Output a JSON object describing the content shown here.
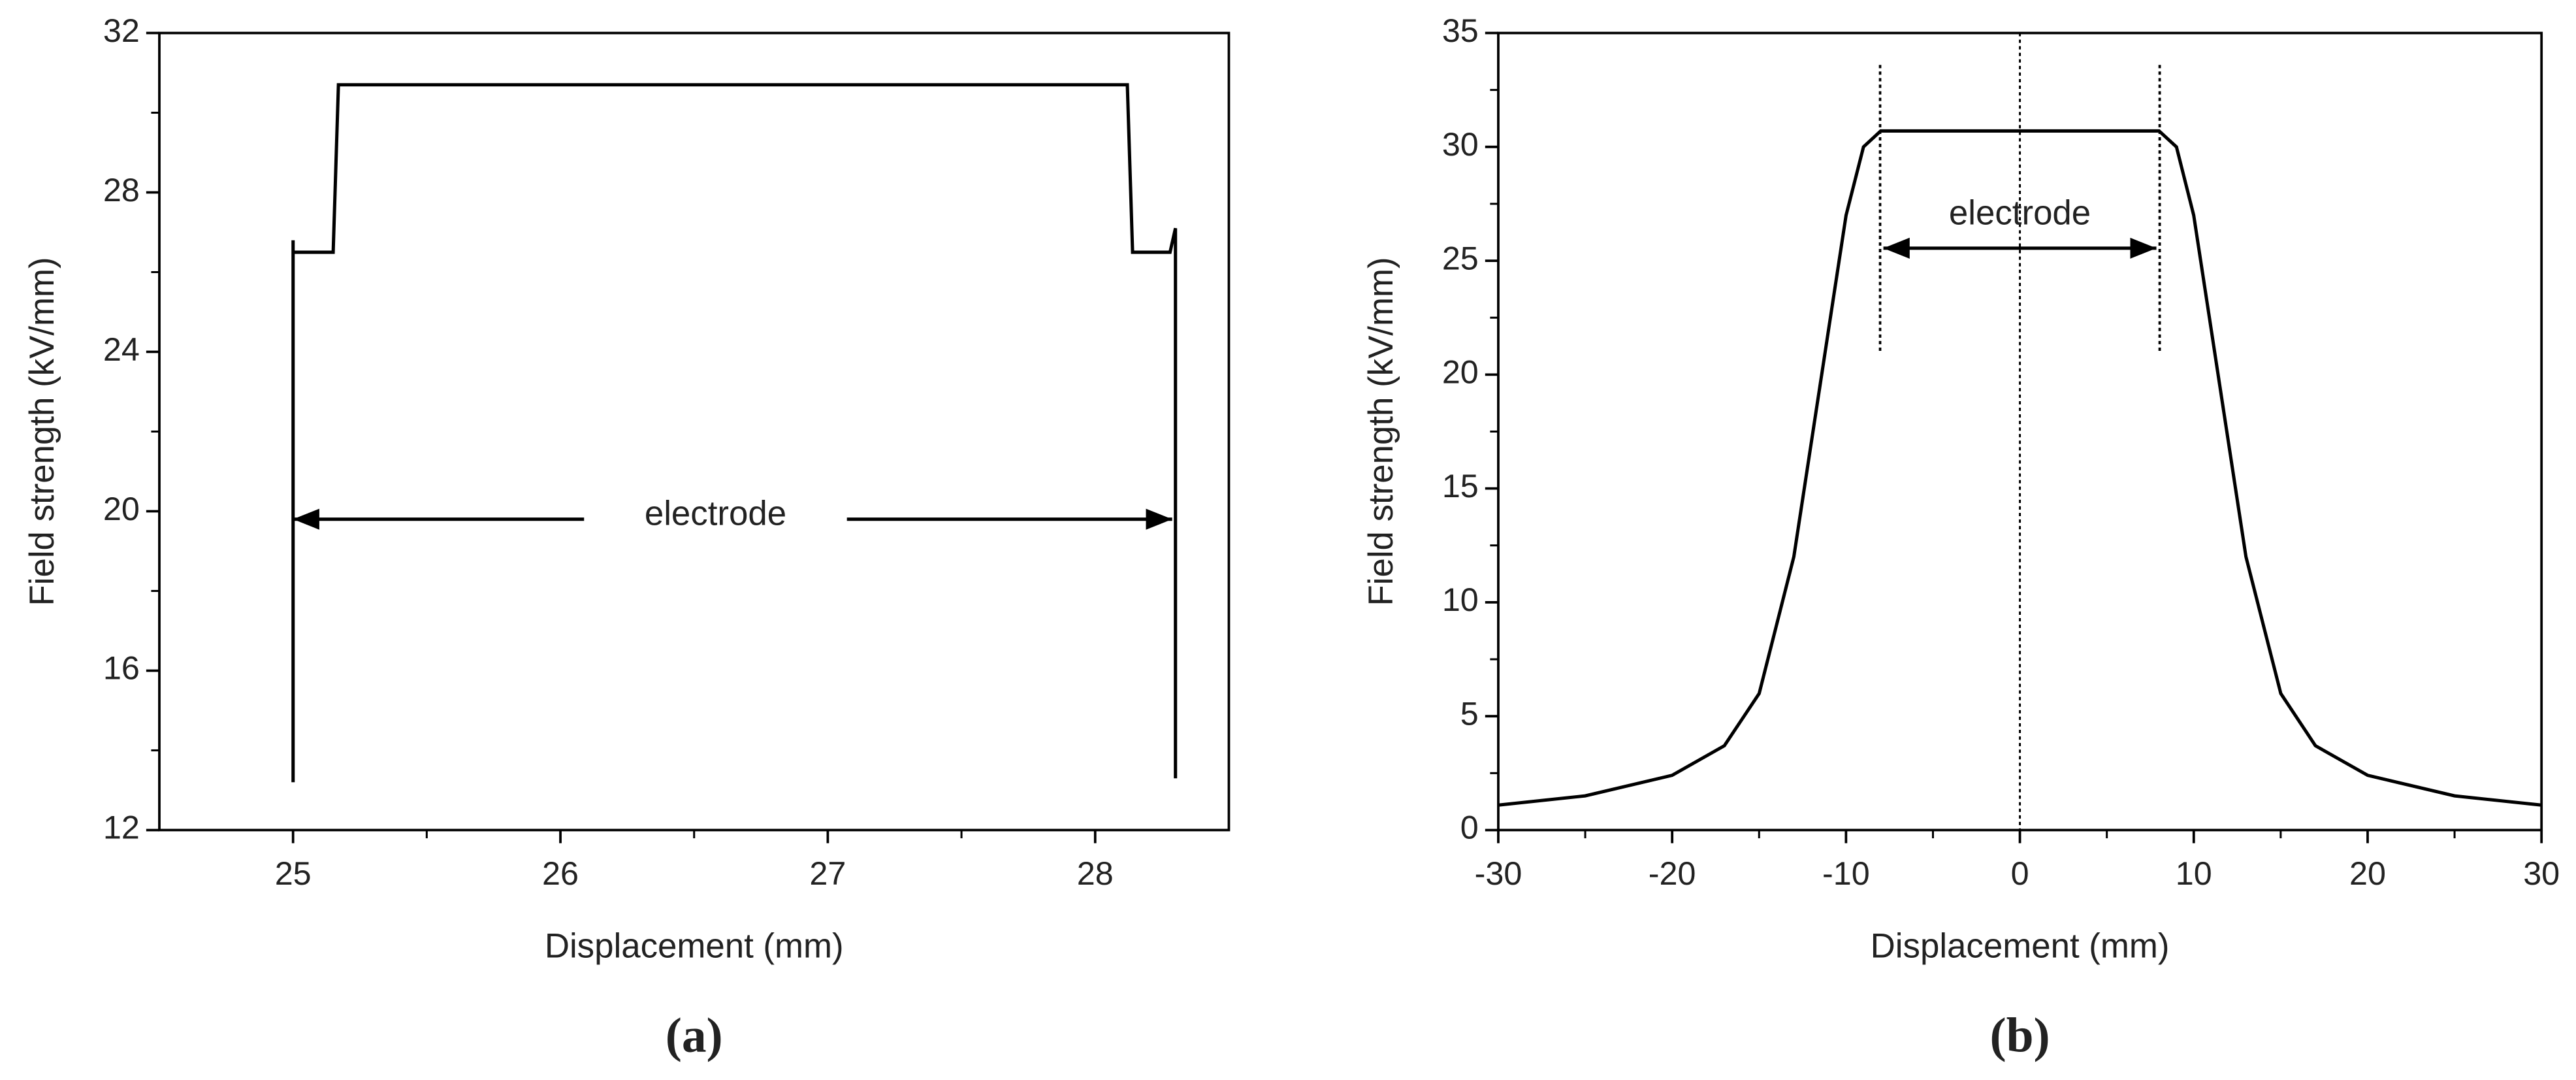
{
  "chart_data": [
    {
      "type": "line",
      "panel_label": "(a)",
      "xlabel": "Displacement (mm)",
      "ylabel": "Field strength (kV/mm)",
      "annotation": "electrode",
      "color": "#000000",
      "x": [
        25,
        25,
        25,
        25.15,
        25.17,
        28.12,
        28.14,
        28.28,
        28.3,
        28.3
      ],
      "values": [
        13.2,
        26.8,
        26.5,
        26.5,
        30.7,
        30.7,
        26.5,
        26.5,
        27.1,
        13.3
      ],
      "xlim": [
        24.5,
        28.5
      ],
      "xticks": [
        25,
        26,
        27,
        28
      ],
      "ylim": [
        12,
        32
      ],
      "yticks": [
        12,
        16,
        20,
        24,
        28,
        32
      ]
    },
    {
      "type": "line",
      "panel_label": "(b)",
      "xlabel": "Displacement (mm)",
      "ylabel": "Field strength (kV/mm)",
      "annotation": "electrode",
      "color": "#000000",
      "x": [
        -30,
        -25,
        -20,
        -17,
        -15,
        -13,
        -11,
        -10,
        -9,
        -8,
        8,
        9,
        10,
        11,
        13,
        15,
        17,
        20,
        25,
        30
      ],
      "values": [
        1.1,
        1.5,
        2.4,
        3.7,
        6,
        12,
        22,
        27,
        30,
        30.7,
        30.7,
        30,
        27,
        22,
        12,
        6,
        3.7,
        2.4,
        1.5,
        1.1
      ],
      "xlim": [
        -30,
        30
      ],
      "xticks": [
        -30,
        -20,
        -10,
        0,
        10,
        20,
        30
      ],
      "ylim": [
        0,
        35
      ],
      "yticks": [
        0,
        5,
        10,
        15,
        20,
        25,
        30,
        35
      ]
    }
  ]
}
